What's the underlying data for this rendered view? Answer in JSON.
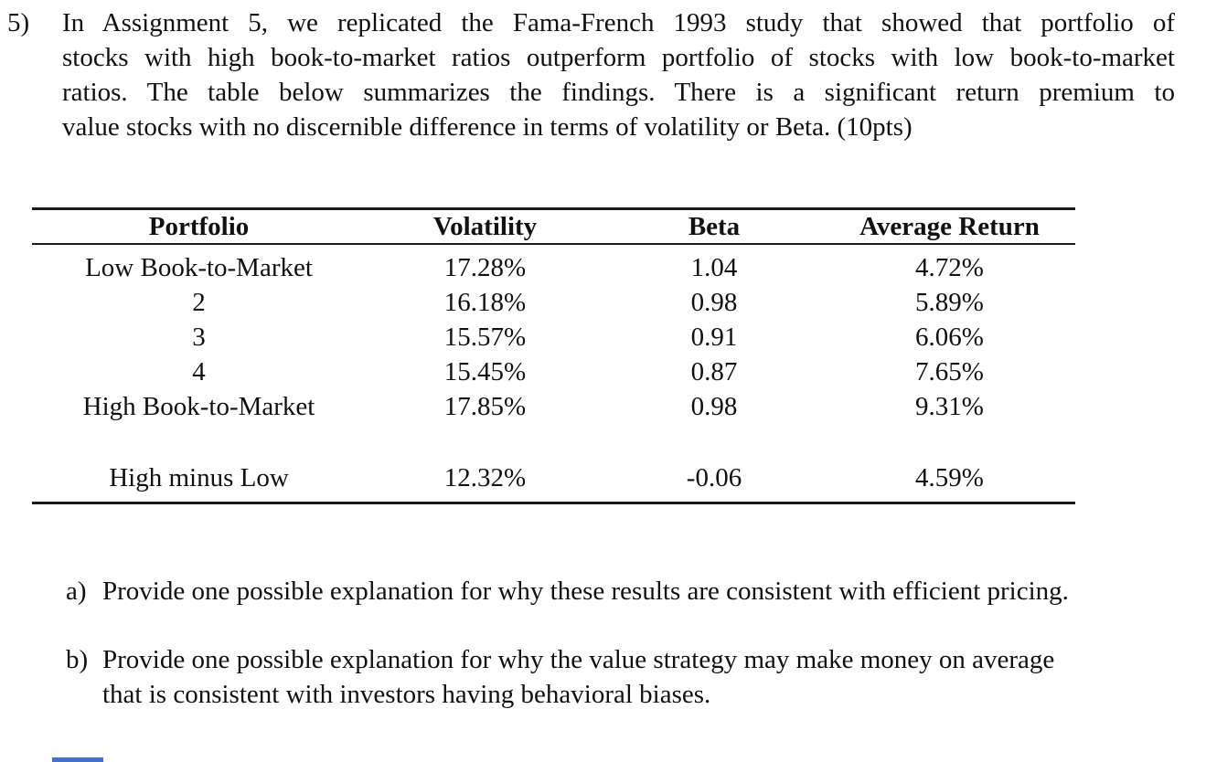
{
  "question": {
    "number": "5)",
    "lines": [
      "In Assignment 5, we replicated the Fama-French 1993 study that showed that portfolio of",
      "stocks with high book-to-market ratios outperform portfolio of stocks with low book-to-market",
      "ratios.  The table below summarizes the findings.  There is a significant return premium to",
      "value stocks with no discernible difference in terms of volatility or Beta. (10pts)"
    ]
  },
  "table": {
    "headers": [
      "Portfolio",
      "Volatility",
      "Beta",
      "Average Return"
    ],
    "rows": [
      {
        "portfolio": "Low Book-to-Market",
        "volatility": "17.28%",
        "beta": "1.04",
        "avg_return": "4.72%"
      },
      {
        "portfolio": "2",
        "volatility": "16.18%",
        "beta": "0.98",
        "avg_return": "5.89%"
      },
      {
        "portfolio": "3",
        "volatility": "15.57%",
        "beta": "0.91",
        "avg_return": "6.06%"
      },
      {
        "portfolio": "4",
        "volatility": "15.45%",
        "beta": "0.87",
        "avg_return": "7.65%"
      },
      {
        "portfolio": "High Book-to-Market",
        "volatility": "17.85%",
        "beta": "0.98",
        "avg_return": "9.31%"
      },
      {
        "portfolio": "High minus Low",
        "volatility": "12.32%",
        "beta": "-0.06",
        "avg_return": "4.59%"
      }
    ]
  },
  "subquestions": [
    {
      "label": "a)",
      "line1": "Provide one possible explanation for why these results are consistent with efficient pricing.",
      "line2": ""
    },
    {
      "label": "b)",
      "line1": "Provide one possible explanation for why the value strategy may make money on average",
      "line2": "that is consistent with investors having behavioral biases."
    }
  ],
  "colors": {
    "text": "#111111",
    "rule": "#1a1a1a",
    "marker_blue": "#4472c4"
  }
}
